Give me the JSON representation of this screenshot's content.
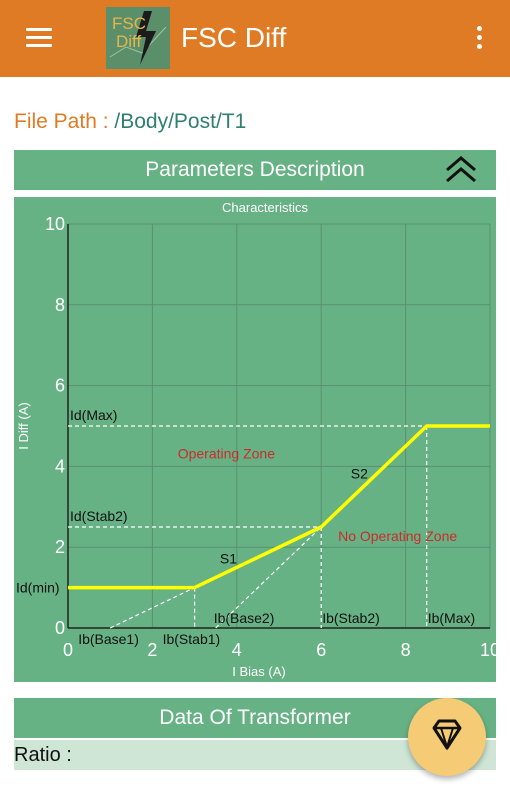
{
  "app": {
    "title": "FSC Diff",
    "logo_text": "FSC Diff"
  },
  "file_path": {
    "label": "File Path :",
    "value": "/Body/Post/T1"
  },
  "sections": {
    "parameters": "Parameters Description",
    "transformer": "Data Of Transformer"
  },
  "ratio": {
    "label": "Ratio :"
  },
  "colors": {
    "appbar": "#e07b25",
    "panel": "#67b285",
    "curve": "#ffff00",
    "zone_label": "#cc2b2b",
    "fab": "#f5cc75"
  },
  "icons": {
    "menu": "hamburger-menu-icon",
    "more": "more-vert-icon",
    "collapse": "double-chevron-up-icon",
    "fab": "diamond-icon"
  },
  "chart_data": {
    "type": "line",
    "title": "Characteristics",
    "xlabel": "I Bias (A)",
    "ylabel": "I Diff (A)",
    "xlim": [
      0,
      10
    ],
    "ylim": [
      0,
      10
    ],
    "xticks": [
      0,
      2,
      4,
      6,
      8,
      10
    ],
    "yticks": [
      0,
      2,
      4,
      6,
      8,
      10
    ],
    "grid": true,
    "series": [
      {
        "x": [
          0,
          3,
          6,
          8.5,
          10
        ],
        "y": [
          1,
          1,
          2.5,
          5,
          5
        ]
      }
    ],
    "slope_labels": [
      {
        "text": "S1",
        "x": 3.6,
        "y": 1.6
      },
      {
        "text": "S2",
        "x": 6.7,
        "y": 3.7
      }
    ],
    "zone_labels": [
      {
        "text": "Operating Zone",
        "x": 2.6,
        "y": 4.2
      },
      {
        "text": "No Operating Zone",
        "x": 6.4,
        "y": 2.15
      }
    ],
    "y_markers": [
      {
        "label": "Id(Max)",
        "y": 5,
        "x_end": 8.5
      },
      {
        "label": "Id(Stab2)",
        "y": 2.5,
        "x_end": 6
      },
      {
        "label": "Id(min)",
        "y": 1,
        "x_end": 0
      }
    ],
    "x_markers": [
      {
        "label": "Ib(Stab1)",
        "x": 3,
        "y_top": 1
      },
      {
        "label": "Ib(Stab2)",
        "x": 6,
        "y_top": 2.5
      },
      {
        "label": "Ib(Max)",
        "x": 8.5,
        "y_top": 5
      }
    ],
    "base_lines": [
      {
        "label": "Ib(Base1)",
        "x0": 1,
        "x1": 3,
        "y1": 1
      },
      {
        "label": "Ib(Base2)",
        "x0": 3.5,
        "x1": 6,
        "y1": 2.5
      }
    ]
  }
}
